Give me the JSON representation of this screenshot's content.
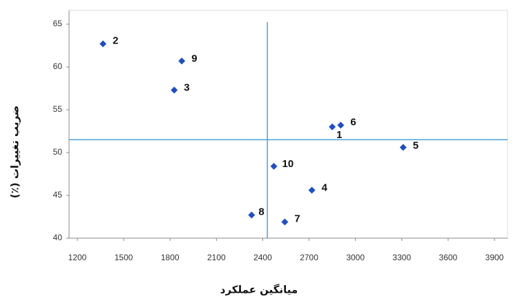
{
  "chart_data": {
    "type": "scatter",
    "x_label": "میانگین عملکرد",
    "y_label": "ضریب تغییرات (٪)",
    "x": [
      2850,
      1366,
      1827,
      2718,
      3309,
      2905,
      2543,
      2328,
      1876,
      2472
    ],
    "values": [
      53.0,
      62.7,
      57.3,
      45.6,
      50.6,
      53.2,
      41.9,
      42.7,
      60.7,
      48.4
    ],
    "labels": [
      "1",
      "2",
      "3",
      "4",
      "5",
      "6",
      "7",
      "8",
      "9",
      "10"
    ],
    "color": "#1f4fbf",
    "vline": 2430,
    "hline": 51.5,
    "line_color": "#4d9fdc",
    "xlim": [
      1200,
      3900
    ],
    "xticks": [
      1200,
      1500,
      1800,
      2100,
      2400,
      2700,
      3000,
      3300,
      3600,
      3900
    ],
    "ylim": [
      40,
      65
    ],
    "yticks": [
      40,
      45,
      50,
      55,
      60,
      65
    ]
  }
}
